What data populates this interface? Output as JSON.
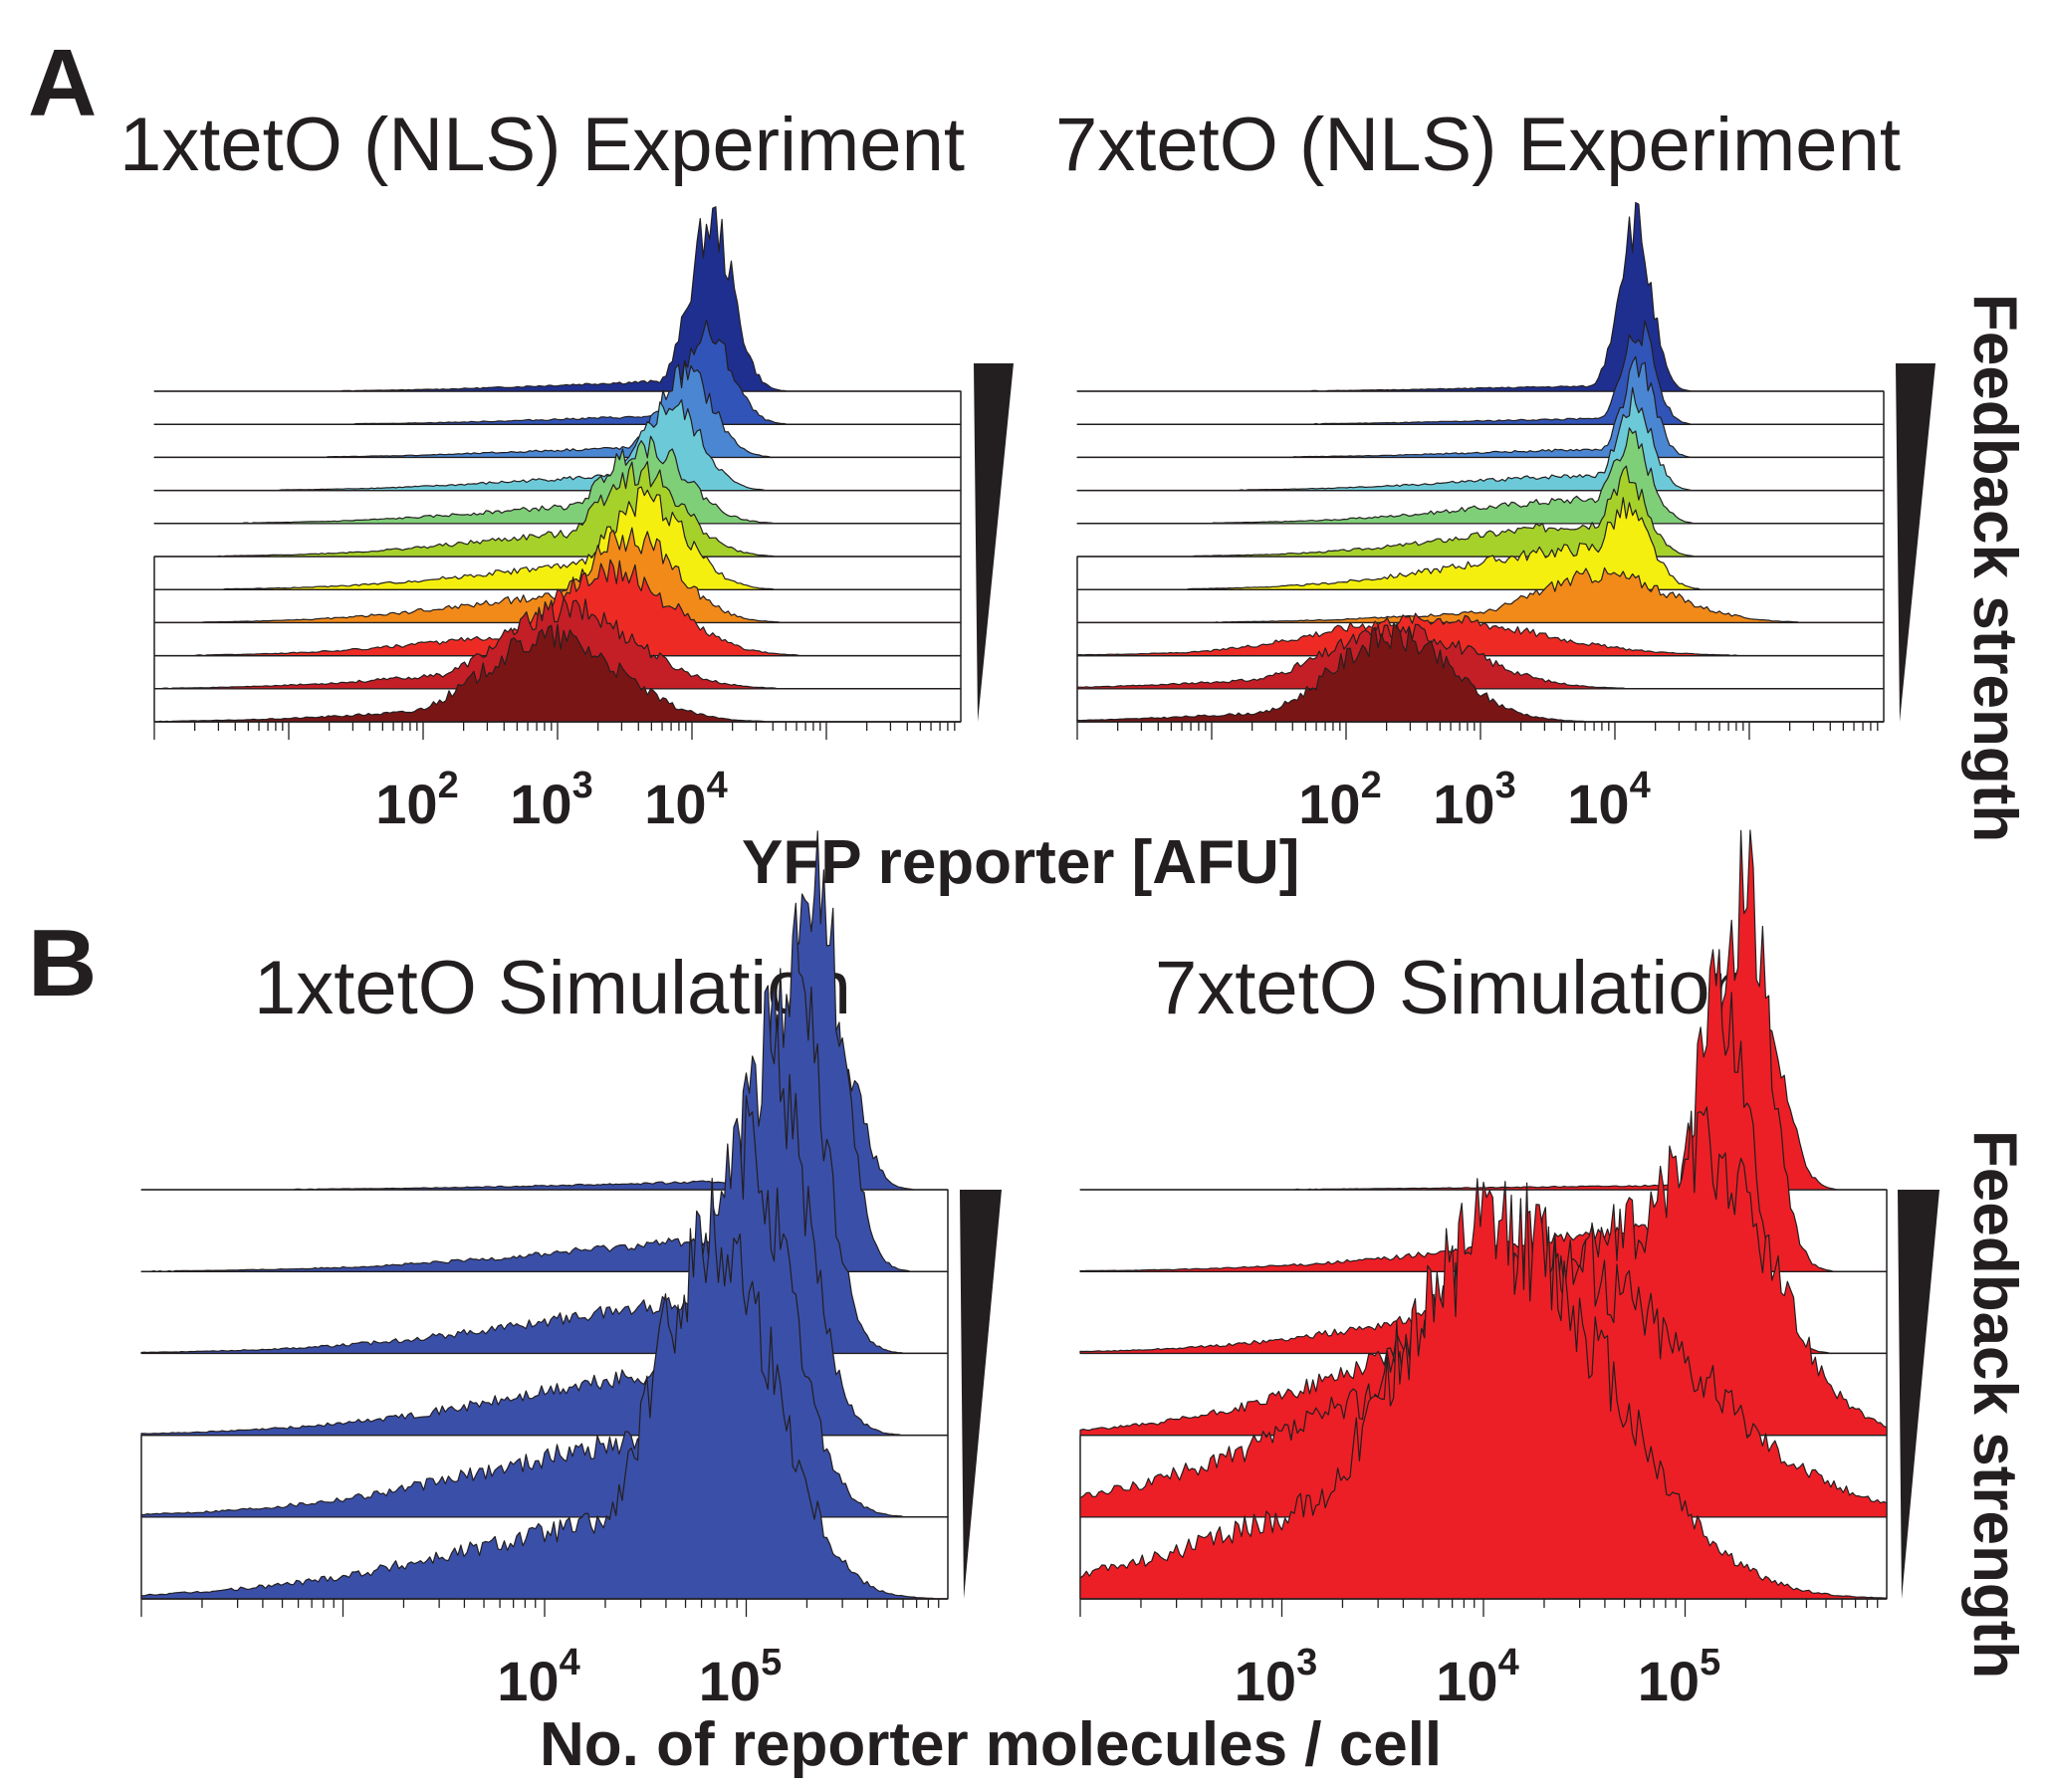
{
  "panels": {
    "a": {
      "letter": "A",
      "xlabel": "YFP reporter [AFU]",
      "side_label": "Feedback strength"
    },
    "b": {
      "letter": "B",
      "xlabel": "No. of reporter molecules / cell",
      "side_label": "Feedback strength"
    }
  },
  "chart_data": [
    {
      "id": "a1",
      "type": "area",
      "subtype": "stacked histograms (ridgeline)",
      "title": "1xtetO (NLS) Experiment",
      "xlabel": "YFP reporter [AFU]",
      "xscale": "log",
      "xlim": [
        1,
        1000000
      ],
      "xticks": [
        {
          "label": "10",
          "exp": "2",
          "value": 100
        },
        {
          "label": "10",
          "exp": "3",
          "value": 1000
        },
        {
          "label": "10",
          "exp": "4",
          "value": 10000
        }
      ],
      "series": [
        {
          "color": "#1f2f8f",
          "peak": 14000,
          "sigma": 0.16,
          "tail": 0.02,
          "height": 1.0
        },
        {
          "color": "#3154b8",
          "peak": 13000,
          "sigma": 0.18,
          "tail": 0.03,
          "height": 0.85
        },
        {
          "color": "#4a86d2",
          "peak": 9000,
          "sigma": 0.2,
          "tail": 0.04,
          "height": 0.8
        },
        {
          "color": "#6ccad8",
          "peak": 7000,
          "sigma": 0.22,
          "tail": 0.06,
          "height": 0.8
        },
        {
          "color": "#7fcf78",
          "peak": 4500,
          "sigma": 0.3,
          "tail": 0.08,
          "height": 0.75
        },
        {
          "color": "#a6d12a",
          "peak": 4000,
          "sigma": 0.32,
          "tail": 0.1,
          "height": 0.8
        },
        {
          "color": "#f5ef10",
          "peak": 4500,
          "sigma": 0.3,
          "tail": 0.1,
          "height": 0.85
        },
        {
          "color": "#f28a1a",
          "peak": 3500,
          "sigma": 0.35,
          "tail": 0.12,
          "height": 0.8
        },
        {
          "color": "#ed2b24",
          "peak": 2500,
          "sigma": 0.45,
          "tail": 0.1,
          "height": 0.8
        },
        {
          "color": "#c41e26",
          "peak": 1200,
          "sigma": 0.5,
          "tail": 0.08,
          "height": 0.75
        },
        {
          "color": "#7a1515",
          "peak": 900,
          "sigma": 0.5,
          "tail": 0.06,
          "height": 0.8
        }
      ]
    },
    {
      "id": "a2",
      "type": "area",
      "subtype": "stacked histograms (ridgeline)",
      "title": "7xtetO (NLS) Experiment",
      "xlabel": "YFP reporter [AFU]",
      "xscale": "log",
      "xlim": [
        1,
        1000000
      ],
      "xticks": [
        {
          "label": "10",
          "exp": "2",
          "value": 100
        },
        {
          "label": "10",
          "exp": "3",
          "value": 1000
        },
        {
          "label": "10",
          "exp": "4",
          "value": 10000
        }
      ],
      "series": [
        {
          "color": "#1f2f8f",
          "peak": 14000,
          "sigma": 0.12,
          "tail": 0.01,
          "height": 1.0
        },
        {
          "color": "#3154b8",
          "peak": 15000,
          "sigma": 0.12,
          "tail": 0.02,
          "height": 0.9
        },
        {
          "color": "#4a86d2",
          "peak": 15000,
          "sigma": 0.12,
          "tail": 0.03,
          "height": 0.85
        },
        {
          "color": "#6ccad8",
          "peak": 14000,
          "sigma": 0.13,
          "tail": 0.06,
          "height": 0.85
        },
        {
          "color": "#7fcf78",
          "peak": 13000,
          "sigma": 0.15,
          "tail": 0.1,
          "height": 0.8
        },
        {
          "color": "#a6d12a",
          "peak": 12000,
          "sigma": 0.16,
          "tail": 0.14,
          "height": 0.75
        },
        {
          "color": "#f5ef10",
          "peak": 12000,
          "sigma": 0.18,
          "tail": 0.18,
          "height": 0.75
        },
        {
          "color": "#f28a1a",
          "peak": 8000,
          "sigma": 0.5,
          "tail": 0.1,
          "height": 0.45
        },
        {
          "color": "#ed2b24",
          "peak": 400,
          "sigma": 0.8,
          "tail": 0.1,
          "height": 0.35
        },
        {
          "color": "#c41e26",
          "peak": 250,
          "sigma": 0.55,
          "tail": 0.08,
          "height": 0.55
        },
        {
          "color": "#7a1515",
          "peak": 220,
          "sigma": 0.45,
          "tail": 0.05,
          "height": 0.8
        }
      ]
    },
    {
      "id": "b1",
      "type": "area",
      "subtype": "stacked histograms (ridgeline)",
      "title": "1xtetO Simulation",
      "xlabel": "No. of reporter molecules / cell",
      "xscale": "log",
      "xlim": [
        100,
        1000000
      ],
      "xticks": [
        {
          "label": "10",
          "exp": "4",
          "value": 10000
        },
        {
          "label": "10",
          "exp": "5",
          "value": 100000
        }
      ],
      "series": [
        {
          "color": "#3a4fa7",
          "peak": 280000,
          "sigma": 0.11,
          "tail": 0.02,
          "height": 1.0
        },
        {
          "color": "#3a4fa7",
          "peak": 220000,
          "sigma": 0.13,
          "tail": 0.03,
          "height": 0.98
        },
        {
          "color": "#3a4fa7",
          "peak": 170000,
          "sigma": 0.15,
          "tail": 0.05,
          "height": 0.95
        },
        {
          "color": "#3a4fa7",
          "peak": 130000,
          "sigma": 0.18,
          "tail": 0.06,
          "height": 0.95
        },
        {
          "color": "#3a4fa7",
          "peak": 100000,
          "sigma": 0.22,
          "tail": 0.08,
          "height": 0.9
        },
        {
          "color": "#3a4fa7",
          "peak": 70000,
          "sigma": 0.3,
          "tail": 0.08,
          "height": 0.9
        }
      ]
    },
    {
      "id": "b2",
      "type": "area",
      "subtype": "stacked histograms (ridgeline)",
      "title": "7xtetO Simulation",
      "xlabel": "No. of reporter molecules / cell",
      "xscale": "log",
      "xlim": [
        100,
        1000000
      ],
      "xticks": [
        {
          "label": "10",
          "exp": "3",
          "value": 1000
        },
        {
          "label": "10",
          "exp": "4",
          "value": 10000
        },
        {
          "label": "10",
          "exp": "5",
          "value": 100000
        }
      ],
      "series": [
        {
          "color": "#ec1f26",
          "peak": 260000,
          "sigma": 0.1,
          "tail": 0.01,
          "height": 1.0
        },
        {
          "color": "#ec1f26",
          "peak": 200000,
          "sigma": 0.12,
          "tail": 0.04,
          "height": 0.95
        },
        {
          "color": "#ec1f26",
          "peak": 150000,
          "sigma": 0.15,
          "tail": 0.08,
          "height": 0.9
        },
        {
          "color": "#ec1f26",
          "peak": 120000,
          "sigma": 0.35,
          "tail": 0.25,
          "height": 0.7
        },
        {
          "color": "#ec1f26",
          "peak": 20000,
          "sigma": 0.7,
          "tail": 0.2,
          "height": 0.65
        },
        {
          "color": "#ec1f26",
          "peak": 12000,
          "sigma": 0.55,
          "tail": 0.12,
          "height": 0.9
        }
      ]
    }
  ]
}
